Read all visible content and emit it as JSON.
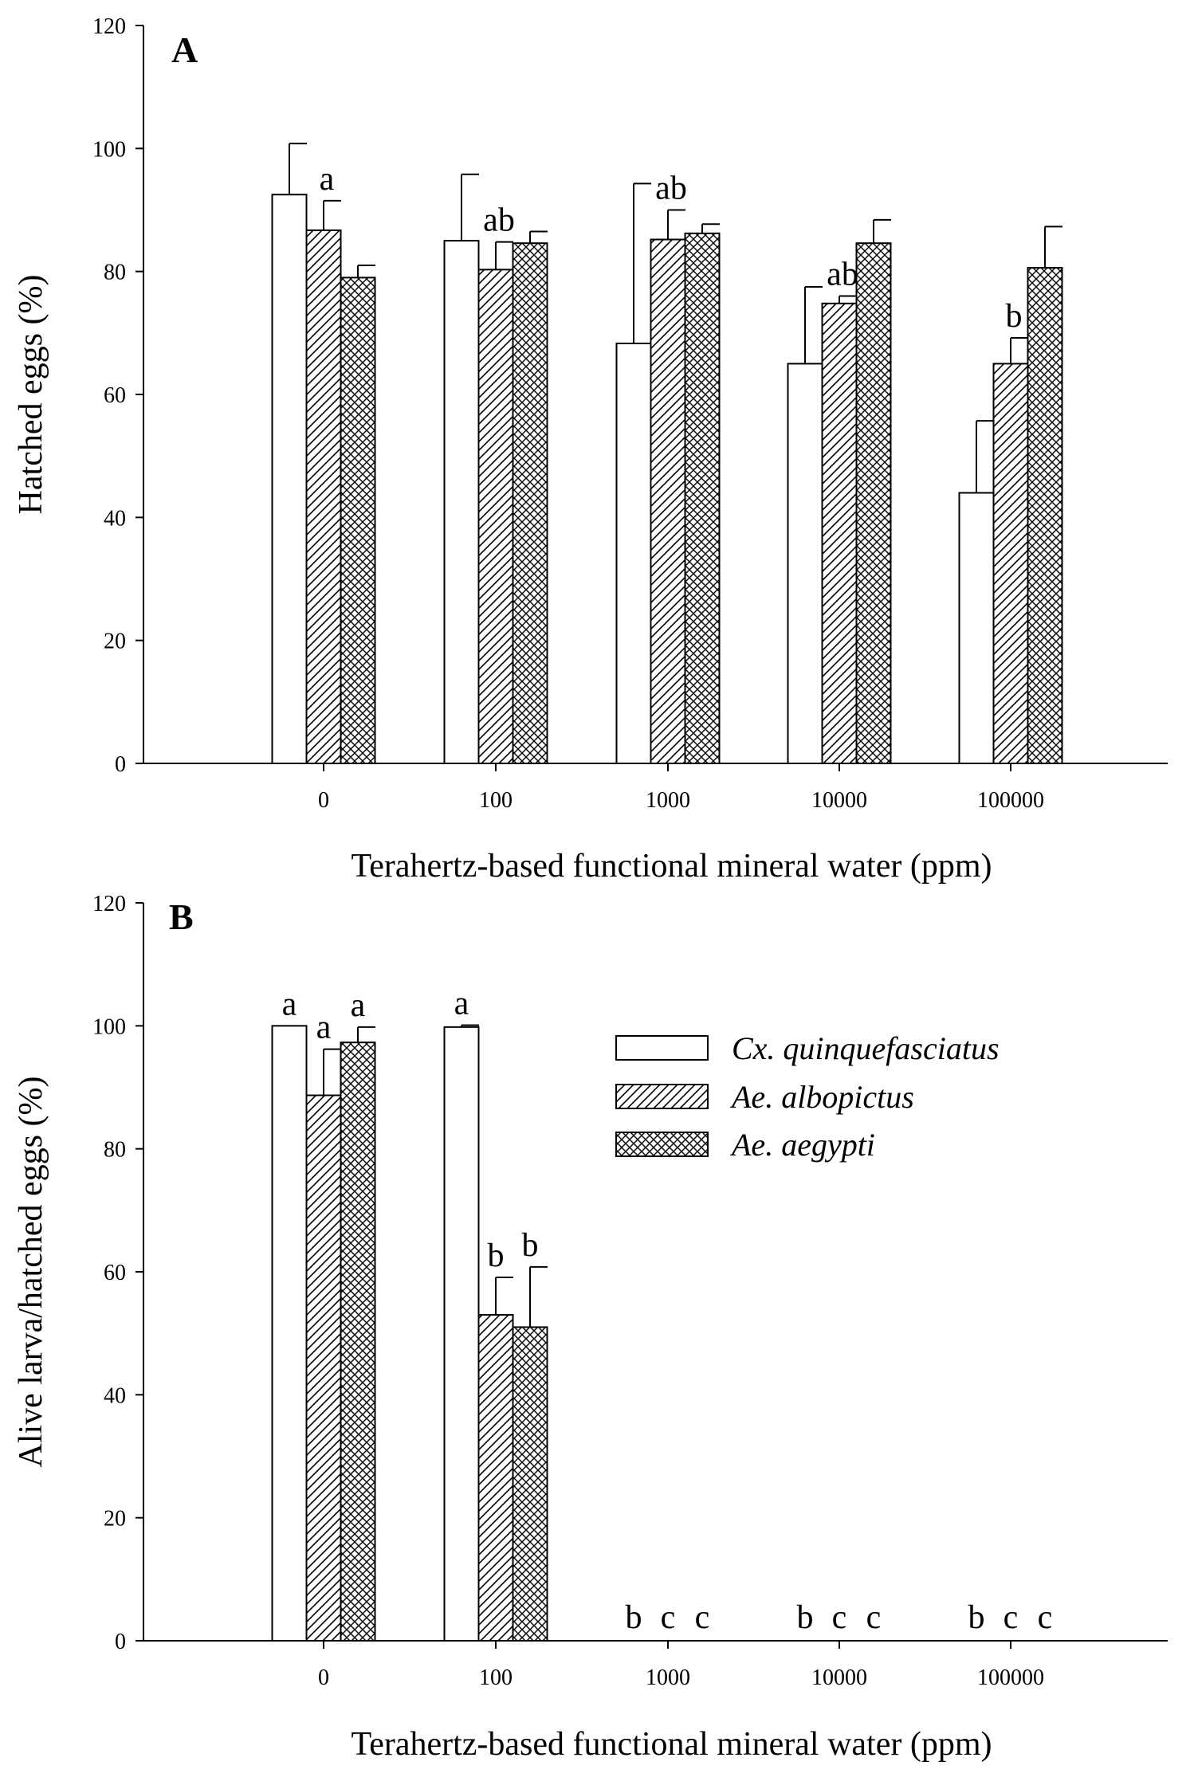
{
  "chart_data": [
    {
      "type": "bar",
      "panel_label": "A",
      "categories": [
        "0",
        "100",
        "1000",
        "10000",
        "100000"
      ],
      "series": [
        {
          "name": "Cx. quinquefasciatus",
          "pattern": "open",
          "values": [
            92.5,
            85,
            68.3,
            65,
            44
          ],
          "errors": [
            8.3,
            10.8,
            26,
            12.5,
            11.7
          ]
        },
        {
          "name": "Ae. albopictus",
          "pattern": "diagonal",
          "values": [
            86.7,
            80.3,
            85.2,
            74.8,
            65
          ],
          "errors": [
            4.8,
            4.5,
            4.8,
            1.2,
            4.2
          ]
        },
        {
          "name": "Ae. aegypti",
          "pattern": "crosshatch",
          "values": [
            79,
            84.6,
            86.2,
            84.6,
            80.6
          ],
          "errors": [
            2,
            1.9,
            1.5,
            3.8,
            6.7
          ]
        }
      ],
      "annotations": [
        {
          "category_index": 0,
          "series_index": 1,
          "text": "a"
        },
        {
          "category_index": 1,
          "series_index": 1,
          "text": "ab"
        },
        {
          "category_index": 2,
          "series_index": 1,
          "text": "ab"
        },
        {
          "category_index": 3,
          "series_index": 1,
          "text": "ab"
        },
        {
          "category_index": 4,
          "series_index": 1,
          "text": "b"
        }
      ],
      "xlabel": "Terahertz-based functional mineral water (ppm)",
      "ylabel": "Hatched eggs (%)",
      "ylim": [
        0,
        120
      ],
      "yticks": [
        0,
        20,
        40,
        60,
        80,
        100,
        120
      ],
      "grid": false
    },
    {
      "type": "bar",
      "panel_label": "B",
      "categories": [
        "0",
        "100",
        "1000",
        "10000",
        "100000"
      ],
      "series": [
        {
          "name": "Cx. quinquefasciatus",
          "pattern": "open",
          "values": [
            100,
            99.8,
            0,
            0,
            0
          ],
          "errors": [
            0,
            0.3,
            0,
            0,
            0
          ]
        },
        {
          "name": "Ae. albopictus",
          "pattern": "diagonal",
          "values": [
            88.7,
            53,
            0,
            0,
            0
          ],
          "errors": [
            7.5,
            6.1,
            0,
            0,
            0
          ]
        },
        {
          "name": "Ae. aegypti",
          "pattern": "crosshatch",
          "values": [
            97.3,
            51,
            0,
            0,
            0
          ],
          "errors": [
            2.5,
            9.8,
            0,
            0,
            0
          ]
        }
      ],
      "annotations": [
        {
          "category_index": 0,
          "series_index": 0,
          "text": "a"
        },
        {
          "category_index": 0,
          "series_index": 1,
          "text": "a"
        },
        {
          "category_index": 0,
          "series_index": 2,
          "text": "a"
        },
        {
          "category_index": 1,
          "series_index": 0,
          "text": "a"
        },
        {
          "category_index": 1,
          "series_index": 1,
          "text": "b"
        },
        {
          "category_index": 1,
          "series_index": 2,
          "text": "b"
        },
        {
          "category_index": 2,
          "series_index": 0,
          "text": "b"
        },
        {
          "category_index": 2,
          "series_index": 1,
          "text": "c"
        },
        {
          "category_index": 2,
          "series_index": 2,
          "text": "c"
        },
        {
          "category_index": 3,
          "series_index": 0,
          "text": "b"
        },
        {
          "category_index": 3,
          "series_index": 1,
          "text": "c"
        },
        {
          "category_index": 3,
          "series_index": 2,
          "text": "c"
        },
        {
          "category_index": 4,
          "series_index": 0,
          "text": "b"
        },
        {
          "category_index": 4,
          "series_index": 1,
          "text": "c"
        },
        {
          "category_index": 4,
          "series_index": 2,
          "text": "c"
        }
      ],
      "legend": {
        "placement": "top-right",
        "entries": [
          "Cx. quinquefasciatus",
          "Ae. albopictus",
          "Ae. aegypti"
        ]
      },
      "xlabel": "Terahertz-based functional mineral water (ppm)",
      "ylabel": "Alive larva/hatched eggs (%)",
      "ylim": [
        0,
        120
      ],
      "yticks": [
        0,
        20,
        40,
        60,
        80,
        100,
        120
      ],
      "grid": false
    }
  ]
}
